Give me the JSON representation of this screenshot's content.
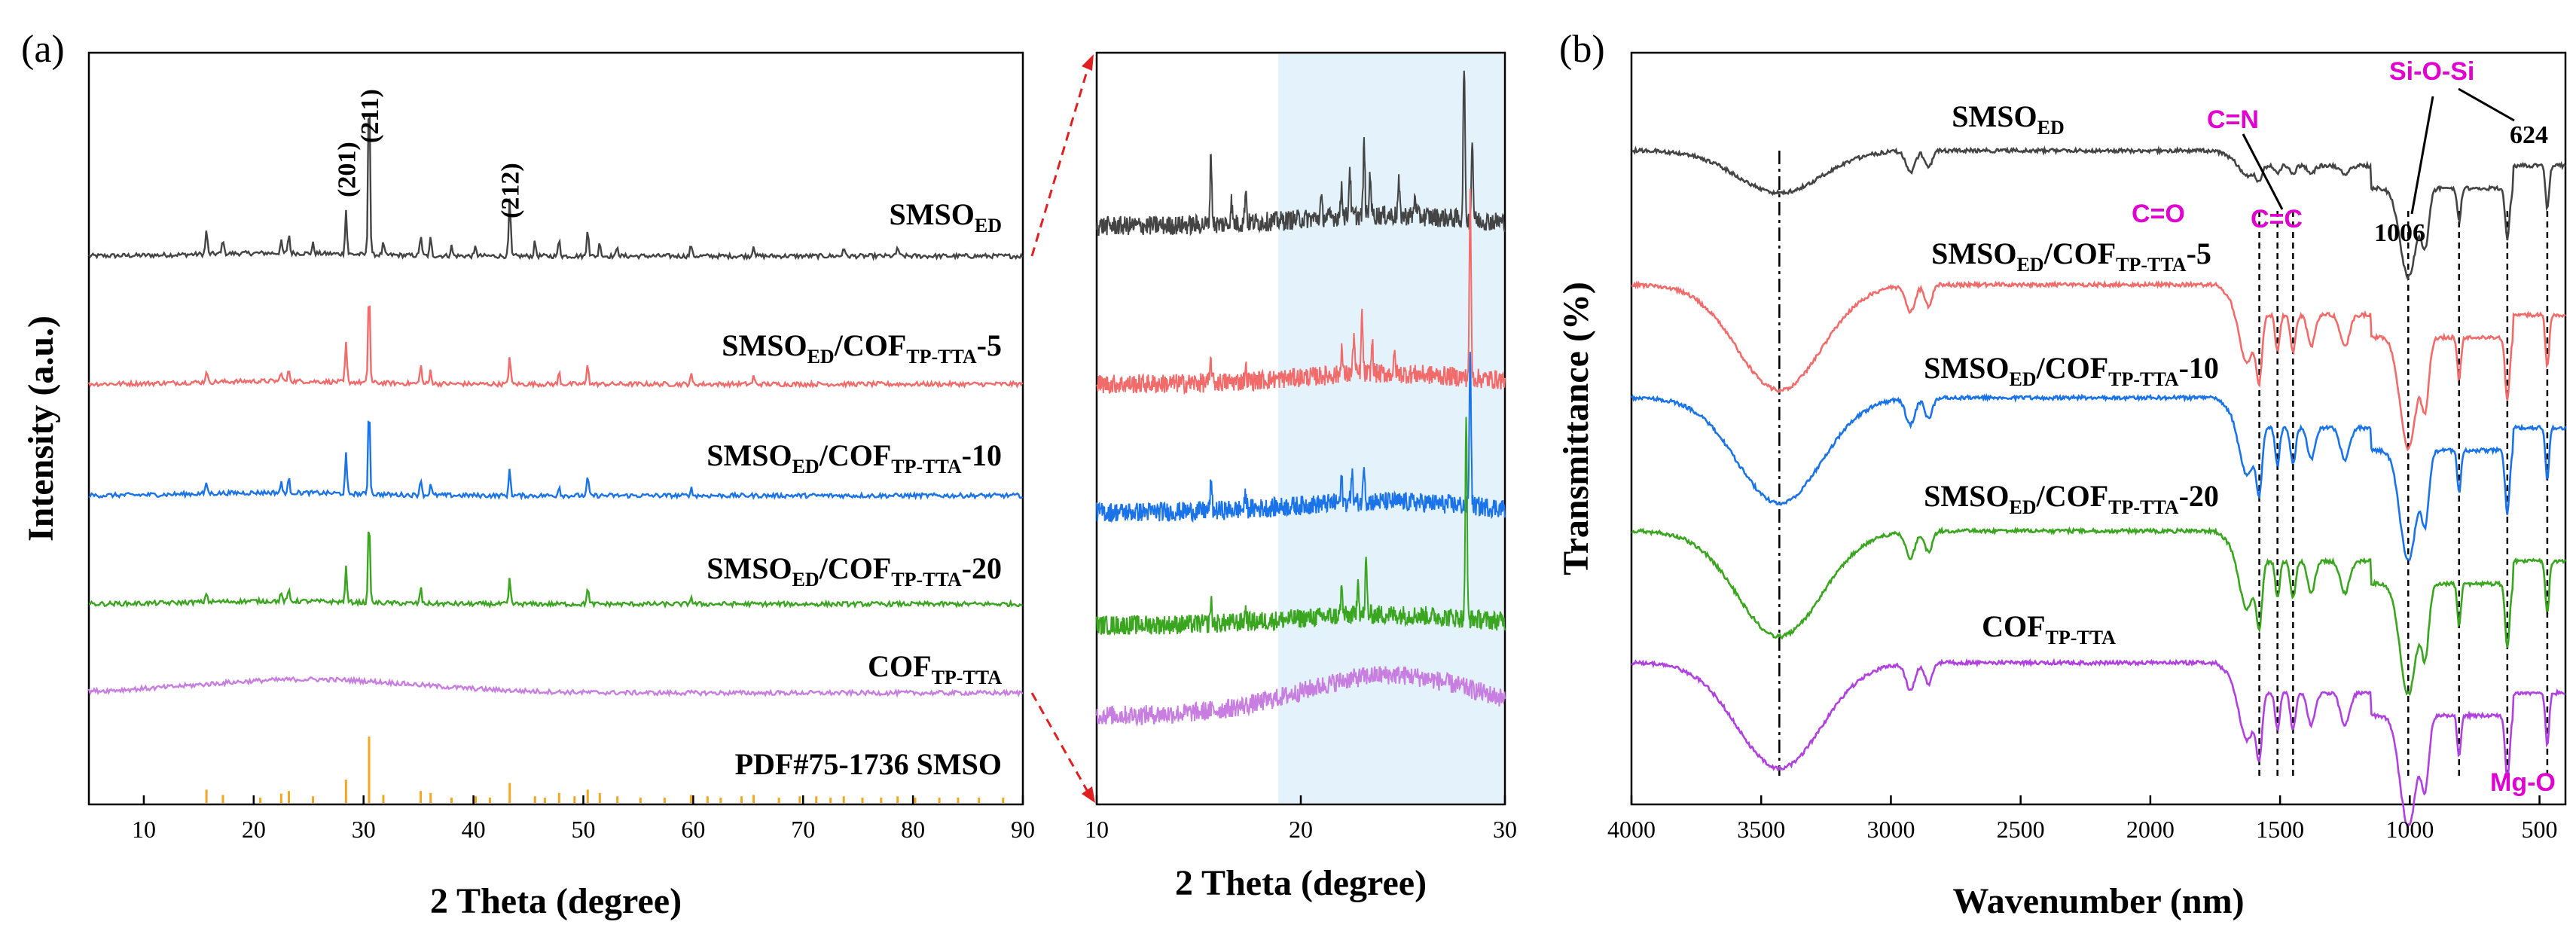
{
  "chart_data": [
    {
      "panel": "(a)",
      "type": "line",
      "title": "",
      "xlabel": "2 Theta (degree)",
      "ylabel": "Intensity (a.u.)",
      "xlim": [
        5,
        90
      ],
      "xticks": [
        10,
        20,
        30,
        40,
        50,
        60,
        70,
        80,
        90
      ],
      "peak_labels": [
        {
          "x": 28.4,
          "text": "(201)"
        },
        {
          "x": 30.5,
          "text": "(211)"
        },
        {
          "x": 43.3,
          "text": "(212)"
        }
      ],
      "series": [
        {
          "name": "SMSO",
          "sub": "ED",
          "suffix": "",
          "color": "#444444",
          "peaks": [
            [
              15.7,
              0.25
            ],
            [
              17.2,
              0.15
            ],
            [
              22.5,
              0.12
            ],
            [
              23.2,
              0.2
            ],
            [
              25.4,
              0.1
            ],
            [
              28.4,
              0.45
            ],
            [
              30.5,
              1.8
            ],
            [
              31.8,
              0.12
            ],
            [
              35.2,
              0.22
            ],
            [
              36.1,
              0.18
            ],
            [
              38.0,
              0.1
            ],
            [
              40.2,
              0.1
            ],
            [
              43.3,
              0.6
            ],
            [
              45.6,
              0.15
            ],
            [
              47.8,
              0.18
            ],
            [
              50.4,
              0.3
            ],
            [
              51.5,
              0.15
            ],
            [
              53.1,
              0.1
            ],
            [
              59.8,
              0.12
            ],
            [
              65.5,
              0.12
            ],
            [
              73.7,
              0.1
            ],
            [
              78.6,
              0.1
            ]
          ]
        },
        {
          "name": "SMSO",
          "sub": "ED",
          "suffix": "/COF",
          "sub2": "TP-TTA",
          "tail": "-5",
          "color": "#f26b6b",
          "peaks": [
            [
              15.7,
              0.12
            ],
            [
              22.5,
              0.1
            ],
            [
              23.2,
              0.12
            ],
            [
              28.4,
              0.4
            ],
            [
              30.5,
              1.0
            ],
            [
              35.2,
              0.2
            ],
            [
              36.1,
              0.14
            ],
            [
              43.3,
              0.3
            ],
            [
              47.8,
              0.12
            ],
            [
              50.4,
              0.22
            ],
            [
              59.8,
              0.1
            ],
            [
              65.5,
              0.08
            ]
          ]
        },
        {
          "name": "SMSO",
          "sub": "ED",
          "suffix": "/COF",
          "sub2": "TP-TTA",
          "tail": "-10",
          "color": "#1a73e8",
          "peaks": [
            [
              15.7,
              0.12
            ],
            [
              22.5,
              0.1
            ],
            [
              23.2,
              0.14
            ],
            [
              28.4,
              0.4
            ],
            [
              30.5,
              0.95
            ],
            [
              35.2,
              0.18
            ],
            [
              36.1,
              0.12
            ],
            [
              43.3,
              0.28
            ],
            [
              47.8,
              0.1
            ],
            [
              50.4,
              0.2
            ],
            [
              59.8,
              0.08
            ]
          ]
        },
        {
          "name": "SMSO",
          "sub": "ED",
          "suffix": "/COF",
          "sub2": "TP-TTA",
          "tail": "-20",
          "color": "#3aa51f",
          "peaks": [
            [
              15.7,
              0.1
            ],
            [
              22.5,
              0.08
            ],
            [
              23.2,
              0.12
            ],
            [
              28.4,
              0.35
            ],
            [
              30.5,
              0.9
            ],
            [
              35.2,
              0.16
            ],
            [
              43.3,
              0.25
            ],
            [
              50.4,
              0.18
            ],
            [
              59.8,
              0.08
            ]
          ]
        },
        {
          "name": "COF",
          "sub": "TP-TTA",
          "suffix": "",
          "color": "#c77ee0",
          "peaks": []
        }
      ],
      "reference": {
        "label": "PDF#75-1736 SMSO",
        "color": "#f5a623",
        "sticks": [
          [
            15.7,
            0.2
          ],
          [
            17.2,
            0.12
          ],
          [
            20.6,
            0.08
          ],
          [
            22.5,
            0.14
          ],
          [
            23.2,
            0.18
          ],
          [
            25.4,
            0.1
          ],
          [
            28.4,
            0.35
          ],
          [
            30.5,
            1.0
          ],
          [
            31.8,
            0.12
          ],
          [
            35.2,
            0.18
          ],
          [
            36.1,
            0.15
          ],
          [
            38.0,
            0.08
          ],
          [
            40.2,
            0.1
          ],
          [
            41.5,
            0.08
          ],
          [
            43.3,
            0.3
          ],
          [
            45.6,
            0.1
          ],
          [
            46.5,
            0.08
          ],
          [
            47.8,
            0.15
          ],
          [
            49.2,
            0.1
          ],
          [
            50.4,
            0.2
          ],
          [
            51.5,
            0.15
          ],
          [
            53.1,
            0.1
          ],
          [
            55.2,
            0.08
          ],
          [
            57.4,
            0.08
          ],
          [
            59.8,
            0.12
          ],
          [
            61.3,
            0.1
          ],
          [
            62.5,
            0.08
          ],
          [
            64.4,
            0.1
          ],
          [
            65.5,
            0.12
          ],
          [
            67.8,
            0.08
          ],
          [
            69.7,
            0.1
          ],
          [
            71.2,
            0.1
          ],
          [
            72.5,
            0.08
          ],
          [
            73.7,
            0.1
          ],
          [
            75.4,
            0.08
          ],
          [
            77.1,
            0.08
          ],
          [
            78.6,
            0.1
          ],
          [
            80.2,
            0.08
          ],
          [
            82.4,
            0.08
          ],
          [
            84.1,
            0.08
          ],
          [
            86.0,
            0.08
          ],
          [
            88.2,
            0.08
          ]
        ]
      }
    },
    {
      "panel": "zoom",
      "type": "line",
      "xlabel": "2 Theta (degree)",
      "xlim": [
        10,
        30
      ],
      "xticks": [
        10,
        20,
        30
      ],
      "highlight_range": [
        18.9,
        30
      ],
      "series_peaks": [
        [
          [
            15.6,
            1.6
          ],
          [
            16.6,
            0.5
          ],
          [
            17.3,
            0.8
          ],
          [
            21.0,
            0.4
          ],
          [
            22.0,
            0.7
          ],
          [
            22.4,
            1.1
          ],
          [
            23.1,
            1.6
          ],
          [
            23.4,
            1.0
          ],
          [
            24.8,
            0.7
          ],
          [
            25.6,
            0.5
          ],
          [
            28.0,
            3.5
          ],
          [
            28.4,
            1.8
          ]
        ],
        [
          [
            15.6,
            0.5
          ],
          [
            17.3,
            0.3
          ],
          [
            22.0,
            0.6
          ],
          [
            22.6,
            0.9
          ],
          [
            23.0,
            1.3
          ],
          [
            23.5,
            0.7
          ],
          [
            24.6,
            0.4
          ],
          [
            28.3,
            4.0
          ]
        ],
        [
          [
            15.6,
            0.6
          ],
          [
            17.3,
            0.3
          ],
          [
            22.0,
            0.5
          ],
          [
            22.5,
            0.7
          ],
          [
            23.1,
            0.9
          ],
          [
            28.3,
            3.5
          ]
        ],
        [
          [
            15.6,
            0.5
          ],
          [
            17.3,
            0.3
          ],
          [
            22.0,
            0.6
          ],
          [
            22.8,
            0.9
          ],
          [
            23.2,
            1.2
          ],
          [
            28.1,
            4.5
          ]
        ],
        []
      ]
    },
    {
      "panel": "(b)",
      "type": "line",
      "xlabel": "Wavenumber (nm)",
      "ylabel": "Transmittance (%)",
      "xlim": [
        4000,
        400
      ],
      "xticks": [
        4000,
        3500,
        3000,
        2500,
        2000,
        1500,
        1000,
        500
      ],
      "series": [
        {
          "name": "SMSO",
          "sub": "ED",
          "suffix": "",
          "color": "#444444",
          "depth": 0.35
        },
        {
          "name": "SMSO",
          "sub": "ED",
          "suffix": "/COF",
          "sub2": "TP-TTA",
          "tail": "-5",
          "color": "#f26b6b",
          "depth": 1.0
        },
        {
          "name": "SMSO",
          "sub": "ED",
          "suffix": "/COF",
          "sub2": "TP-TTA",
          "tail": "-10",
          "color": "#1a73e8",
          "depth": 1.0
        },
        {
          "name": "SMSO",
          "sub": "ED",
          "suffix": "/COF",
          "sub2": "TP-TTA",
          "tail": "-20",
          "color": "#3aa51f",
          "depth": 1.0
        },
        {
          "name": "COF",
          "sub": "TP-TTA",
          "suffix": "",
          "color": "#b040e0",
          "depth": 0.9
        }
      ],
      "guide_lines": [
        3430,
        1580,
        1510,
        1450,
        1006,
        810,
        624,
        470
      ],
      "annotations": {
        "c_o": "C=O",
        "c_n": "C=N",
        "c_c": "C=C",
        "si_o_si": "Si-O-Si",
        "mg_o": "Mg-O",
        "peak_1006": "1006",
        "peak_624": "624"
      }
    }
  ],
  "panel_a_label": "(a)",
  "panel_b_label": "(b)"
}
